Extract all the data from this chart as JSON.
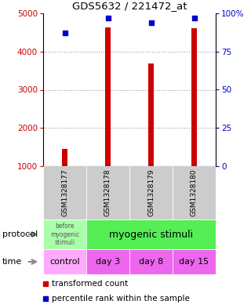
{
  "title": "GDS5632 / 221472_at",
  "samples": [
    "GSM1328177",
    "GSM1328178",
    "GSM1328179",
    "GSM1328180"
  ],
  "x_positions": [
    0,
    1,
    2,
    3
  ],
  "transformed_counts": [
    1450,
    4640,
    3680,
    4620
  ],
  "percentile_ranks_pct": [
    87,
    97,
    94,
    97
  ],
  "ylim_left": [
    1000,
    5000
  ],
  "ylim_right": [
    0,
    100
  ],
  "yticks_left": [
    1000,
    2000,
    3000,
    4000,
    5000
  ],
  "yticks_right": [
    0,
    25,
    50,
    75,
    100
  ],
  "ytick_labels_right": [
    "0",
    "25",
    "50",
    "75",
    "100%"
  ],
  "bar_color": "#cc0000",
  "dot_color": "#0000cc",
  "bar_bottom": 1000,
  "protocol_label_0": "before\nmyogenic\nstimuli",
  "protocol_label_1": "myogenic stimuli",
  "protocol_color_0": "#aaffaa",
  "protocol_color_1": "#55ee55",
  "time_labels": [
    "control",
    "day 3",
    "day 8",
    "day 15"
  ],
  "time_bg_color_0": "#ffaaff",
  "time_bg_color_1": "#ee66ee",
  "legend_bar_label": "transformed count",
  "legend_dot_label": "percentile rank within the sample",
  "grid_color": "#999999",
  "left_label_color": "#cc0000",
  "right_label_color": "#0000cc",
  "sample_bg_color": "#cccccc",
  "bar_width": 0.12,
  "spine_color": "#000000"
}
